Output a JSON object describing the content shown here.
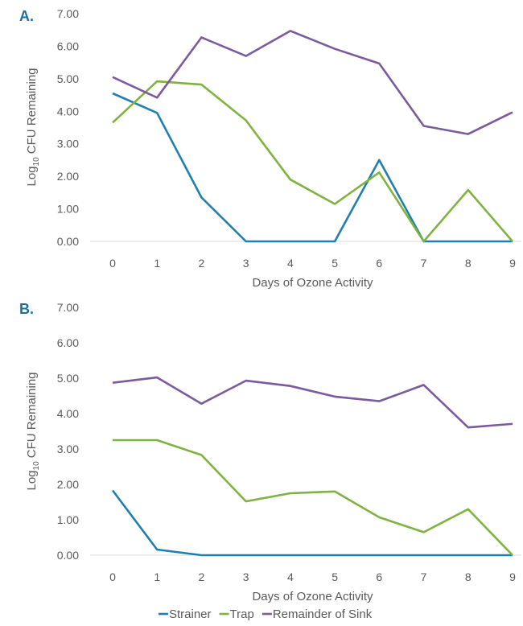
{
  "legend": [
    {
      "name": "Strainer",
      "color": "#1f7fb0"
    },
    {
      "name": "Trap",
      "color": "#7fb241"
    },
    {
      "name": "Remainder of Sink",
      "color": "#7b5a9e"
    }
  ],
  "chart_data": [
    {
      "type": "line",
      "panel_label": "A.",
      "xlabel": "Days of Ozone Activity",
      "ylabel": "Log10 CFU Remaining",
      "ylabel_main": "Log",
      "ylabel_sub": "10",
      "ylabel_rest": " CFU Remaining",
      "x": [
        0,
        1,
        2,
        3,
        4,
        5,
        6,
        7,
        8,
        9
      ],
      "x_tick_labels": [
        "0",
        "1",
        "2",
        "3",
        "4",
        "5",
        "6",
        "7",
        "8",
        "9"
      ],
      "ylim": [
        0,
        7
      ],
      "y_tick_labels": [
        "0.00",
        "1.00",
        "2.00",
        "3.00",
        "4.00",
        "5.00",
        "6.00",
        "7.00"
      ],
      "grid": false,
      "series": [
        {
          "name": "Strainer",
          "values": [
            4.55,
            3.95,
            1.35,
            0.0,
            0.0,
            0.0,
            2.5,
            0.0,
            0.0,
            0.0
          ]
        },
        {
          "name": "Trap",
          "values": [
            3.65,
            4.92,
            4.82,
            3.72,
            1.9,
            1.15,
            2.12,
            0.0,
            1.58,
            0.0
          ]
        },
        {
          "name": "Remainder of Sink",
          "values": [
            5.05,
            4.42,
            6.27,
            5.7,
            6.47,
            5.92,
            5.47,
            3.55,
            3.3,
            3.97
          ]
        }
      ]
    },
    {
      "type": "line",
      "panel_label": "B.",
      "xlabel": "Days of Ozone Activity",
      "ylabel": "Log10 CFU Remaining",
      "ylabel_main": "Log",
      "ylabel_sub": "10",
      "ylabel_rest": " CFU Remaining",
      "x": [
        0,
        1,
        2,
        3,
        4,
        5,
        6,
        7,
        8,
        9
      ],
      "x_tick_labels": [
        "0",
        "1",
        "2",
        "3",
        "4",
        "5",
        "6",
        "7",
        "8",
        "9"
      ],
      "ylim": [
        0,
        7
      ],
      "y_tick_labels": [
        "0.00",
        "1.00",
        "2.00",
        "3.00",
        "4.00",
        "5.00",
        "6.00",
        "7.00"
      ],
      "grid": false,
      "series": [
        {
          "name": "Strainer",
          "values": [
            1.83,
            0.16,
            0.0,
            0.0,
            0.0,
            0.0,
            0.0,
            0.0,
            0.0,
            0.0
          ]
        },
        {
          "name": "Trap",
          "values": [
            3.25,
            3.25,
            2.83,
            1.52,
            1.75,
            1.8,
            1.07,
            0.65,
            1.3,
            0.0
          ]
        },
        {
          "name": "Remainder of Sink",
          "values": [
            4.87,
            5.02,
            4.28,
            4.93,
            4.78,
            4.48,
            4.35,
            4.81,
            3.61,
            3.71
          ]
        }
      ]
    }
  ]
}
